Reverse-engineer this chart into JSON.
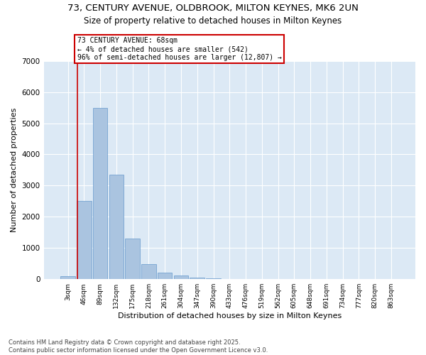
{
  "title_line1": "73, CENTURY AVENUE, OLDBROOK, MILTON KEYNES, MK6 2UN",
  "title_line2": "Size of property relative to detached houses in Milton Keynes",
  "xlabel": "Distribution of detached houses by size in Milton Keynes",
  "ylabel": "Number of detached properties",
  "categories": [
    "3sqm",
    "46sqm",
    "89sqm",
    "132sqm",
    "175sqm",
    "218sqm",
    "261sqm",
    "304sqm",
    "347sqm",
    "390sqm",
    "433sqm",
    "476sqm",
    "519sqm",
    "562sqm",
    "605sqm",
    "648sqm",
    "691sqm",
    "734sqm",
    "777sqm",
    "820sqm",
    "863sqm"
  ],
  "values": [
    100,
    2520,
    5500,
    3340,
    1300,
    490,
    220,
    110,
    55,
    35,
    0,
    0,
    0,
    0,
    0,
    0,
    0,
    0,
    0,
    0,
    0
  ],
  "bar_color": "#aac4e0",
  "bar_edge_color": "#6699cc",
  "vline_color": "#cc0000",
  "annotation_text": "73 CENTURY AVENUE: 68sqm\n← 4% of detached houses are smaller (542)\n96% of semi-detached houses are larger (12,807) →",
  "annotation_box_color": "#ffffff",
  "annotation_border_color": "#cc0000",
  "ylim": [
    0,
    7000
  ],
  "yticks": [
    0,
    1000,
    2000,
    3000,
    4000,
    5000,
    6000,
    7000
  ],
  "background_color": "#dce9f5",
  "footer_line1": "Contains HM Land Registry data © Crown copyright and database right 2025.",
  "footer_line2": "Contains public sector information licensed under the Open Government Licence v3.0.",
  "title_fontsize": 9.5,
  "subtitle_fontsize": 8.5,
  "tick_fontsize": 6.5,
  "label_fontsize": 8,
  "footer_fontsize": 6,
  "annotation_fontsize": 7
}
